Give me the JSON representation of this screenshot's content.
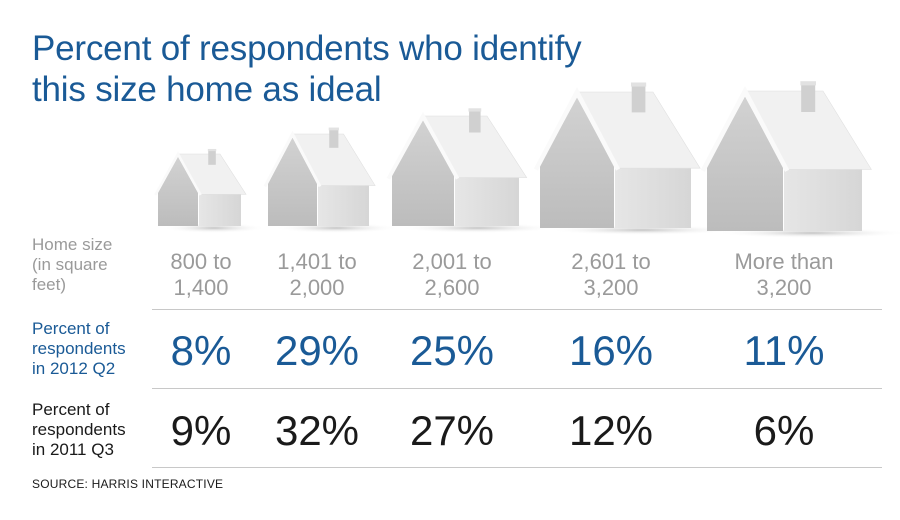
{
  "title_lines": [
    "Percent of respondents who identify",
    "this size home as ideal"
  ],
  "row_labels": {
    "size": [
      "Home size",
      "(in square",
      "feet)"
    ],
    "q2_2012": [
      "Percent of",
      "respondents",
      "in 2012 Q2"
    ],
    "q3_2011": [
      "Percent of",
      "respondents",
      "in 2011 Q3"
    ]
  },
  "source": "SOURCE: HARRIS INTERACTIVE",
  "colors": {
    "accent": "#1a5a96",
    "muted": "#9a9a9a",
    "text": "#1a1a1a",
    "house": "#c9c9c9"
  },
  "chart_data": {
    "type": "table",
    "title": "Percent of respondents who identify this size home as ideal",
    "categories": [
      [
        "800 to",
        "1,400"
      ],
      [
        "1,401 to",
        "2,000"
      ],
      [
        "2,001 to",
        "2,600"
      ],
      [
        "2,601 to",
        "3,200"
      ],
      [
        "More than",
        "3,200"
      ]
    ],
    "series": [
      {
        "name": "Percent of respondents in 2012 Q2",
        "values": [
          8,
          29,
          25,
          16,
          11
        ],
        "display": [
          "8%",
          "29%",
          "25%",
          "16%",
          "11%"
        ]
      },
      {
        "name": "Percent of respondents in 2011 Q3",
        "values": [
          9,
          32,
          27,
          12,
          6
        ],
        "display": [
          "9%",
          "32%",
          "27%",
          "12%",
          "6%"
        ]
      }
    ],
    "icons": [
      "house-icon",
      "house-icon",
      "house-icon",
      "house-icon",
      "house-icon"
    ]
  }
}
